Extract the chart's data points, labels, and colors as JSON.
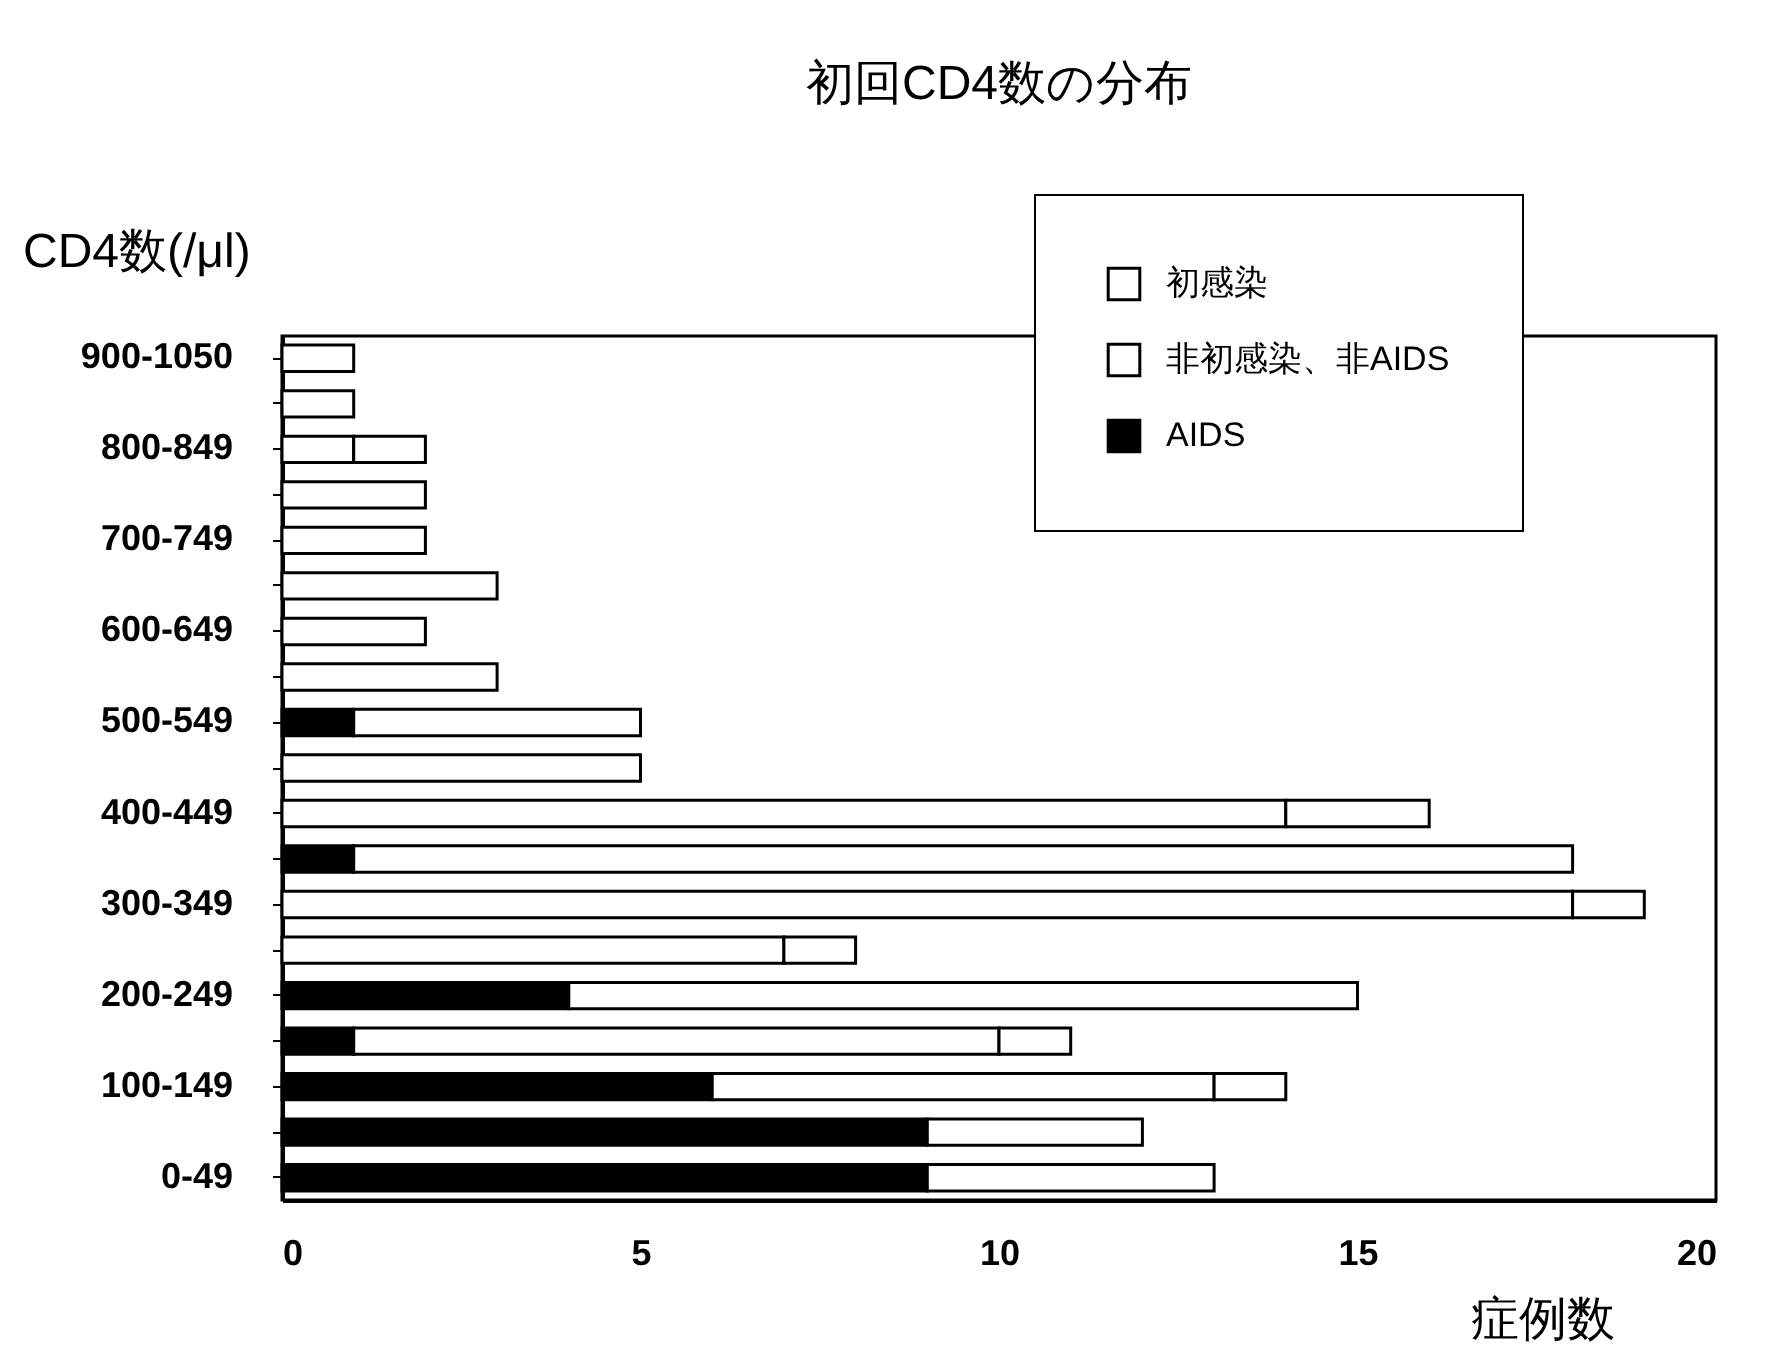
{
  "chart_data": {
    "type": "bar",
    "orientation": "horizontal",
    "stacked": true,
    "title": "初回CD4数の分布",
    "xlabel": "症例数",
    "ylabel": "CD4数(/μl)",
    "categories": [
      "900-1050",
      null,
      "800-849",
      null,
      "700-749",
      null,
      "600-649",
      null,
      "500-549",
      null,
      "400-449",
      null,
      "300-349",
      null,
      "200-249",
      null,
      "100-149",
      null,
      "0-49"
    ],
    "series": [
      {
        "name": "AIDS",
        "color": "#000000",
        "values": [
          0,
          0,
          0,
          0,
          0,
          0,
          0,
          0,
          1,
          0,
          0,
          1,
          0,
          0,
          4,
          1,
          6,
          9,
          9
        ]
      },
      {
        "name": "非初感染、非AIDS",
        "color": "#ffffff",
        "values": [
          1,
          1,
          1,
          2,
          2,
          3,
          2,
          3,
          4,
          5,
          14,
          17,
          18,
          7,
          11,
          9,
          7,
          3,
          4
        ]
      },
      {
        "name": "初感染",
        "color": "#ffffff",
        "values": [
          0,
          0,
          1,
          0,
          0,
          0,
          0,
          0,
          0,
          0,
          2,
          0,
          1,
          1,
          0,
          1,
          1,
          0,
          0
        ]
      }
    ],
    "xlim": [
      0,
      20
    ],
    "xticks": [
      0,
      5,
      10,
      15,
      20
    ],
    "grid": false,
    "legend": "top right"
  }
}
